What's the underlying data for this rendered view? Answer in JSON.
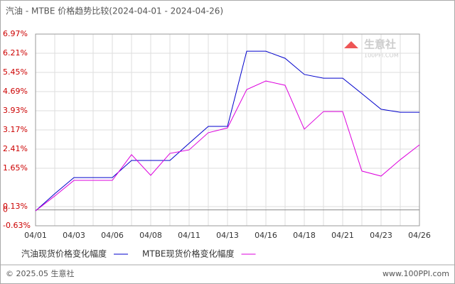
{
  "chart_data": {
    "type": "line",
    "title": "汽油 - MTBE 价格趋势比较(2024-04-01 - 2024-04-26)",
    "watermark": "生意社",
    "watermark_sub": "100PPI.COM",
    "footer_left": "© 2025.05 生意社",
    "footer_right": "www.100PPI.com",
    "categories": [
      "04/01",
      null,
      "04/03",
      null,
      "04/06",
      null,
      "04/08",
      null,
      "04/11",
      null,
      "04/13",
      null,
      "04/16",
      null,
      "04/18",
      null,
      "04/21",
      null,
      "04/23",
      null,
      "04/26"
    ],
    "series": [
      {
        "name": "汽油现货价格变化幅度",
        "color": "#0000cc",
        "values": [
          -0.04,
          0.64,
          1.28,
          1.28,
          1.28,
          1.96,
          1.96,
          1.96,
          2.64,
          3.31,
          3.31,
          6.29,
          6.29,
          6.01,
          5.37,
          5.22,
          5.22,
          4.61,
          3.99,
          3.87,
          3.87
        ]
      },
      {
        "name": "MTBE现货价格变化幅度",
        "color": "#dd00dd",
        "values": [
          -0.04,
          0.55,
          1.17,
          1.17,
          1.17,
          2.19,
          1.37,
          2.24,
          2.38,
          3.06,
          3.25,
          4.77,
          5.11,
          4.94,
          3.2,
          3.9,
          3.9,
          1.54,
          1.34,
          1.99,
          2.58
        ]
      }
    ],
    "ylim": [
      -0.63,
      6.97
    ],
    "yticks": [
      {
        "value": 6.97,
        "label": "6.97%"
      },
      {
        "value": 6.21,
        "label": "6.21%"
      },
      {
        "value": 5.45,
        "label": "5.45%"
      },
      {
        "value": 4.69,
        "label": "4.69%"
      },
      {
        "value": 3.93,
        "label": "3.93%"
      },
      {
        "value": 3.17,
        "label": "3.17%"
      },
      {
        "value": 2.41,
        "label": "2.41%"
      },
      {
        "value": 1.65,
        "label": "1.65%"
      },
      0,
      {
        "value": 0.13,
        "label": "0.13%"
      },
      {
        "value": -0.63,
        "label": "-0.63%"
      }
    ],
    "grid": true
  }
}
